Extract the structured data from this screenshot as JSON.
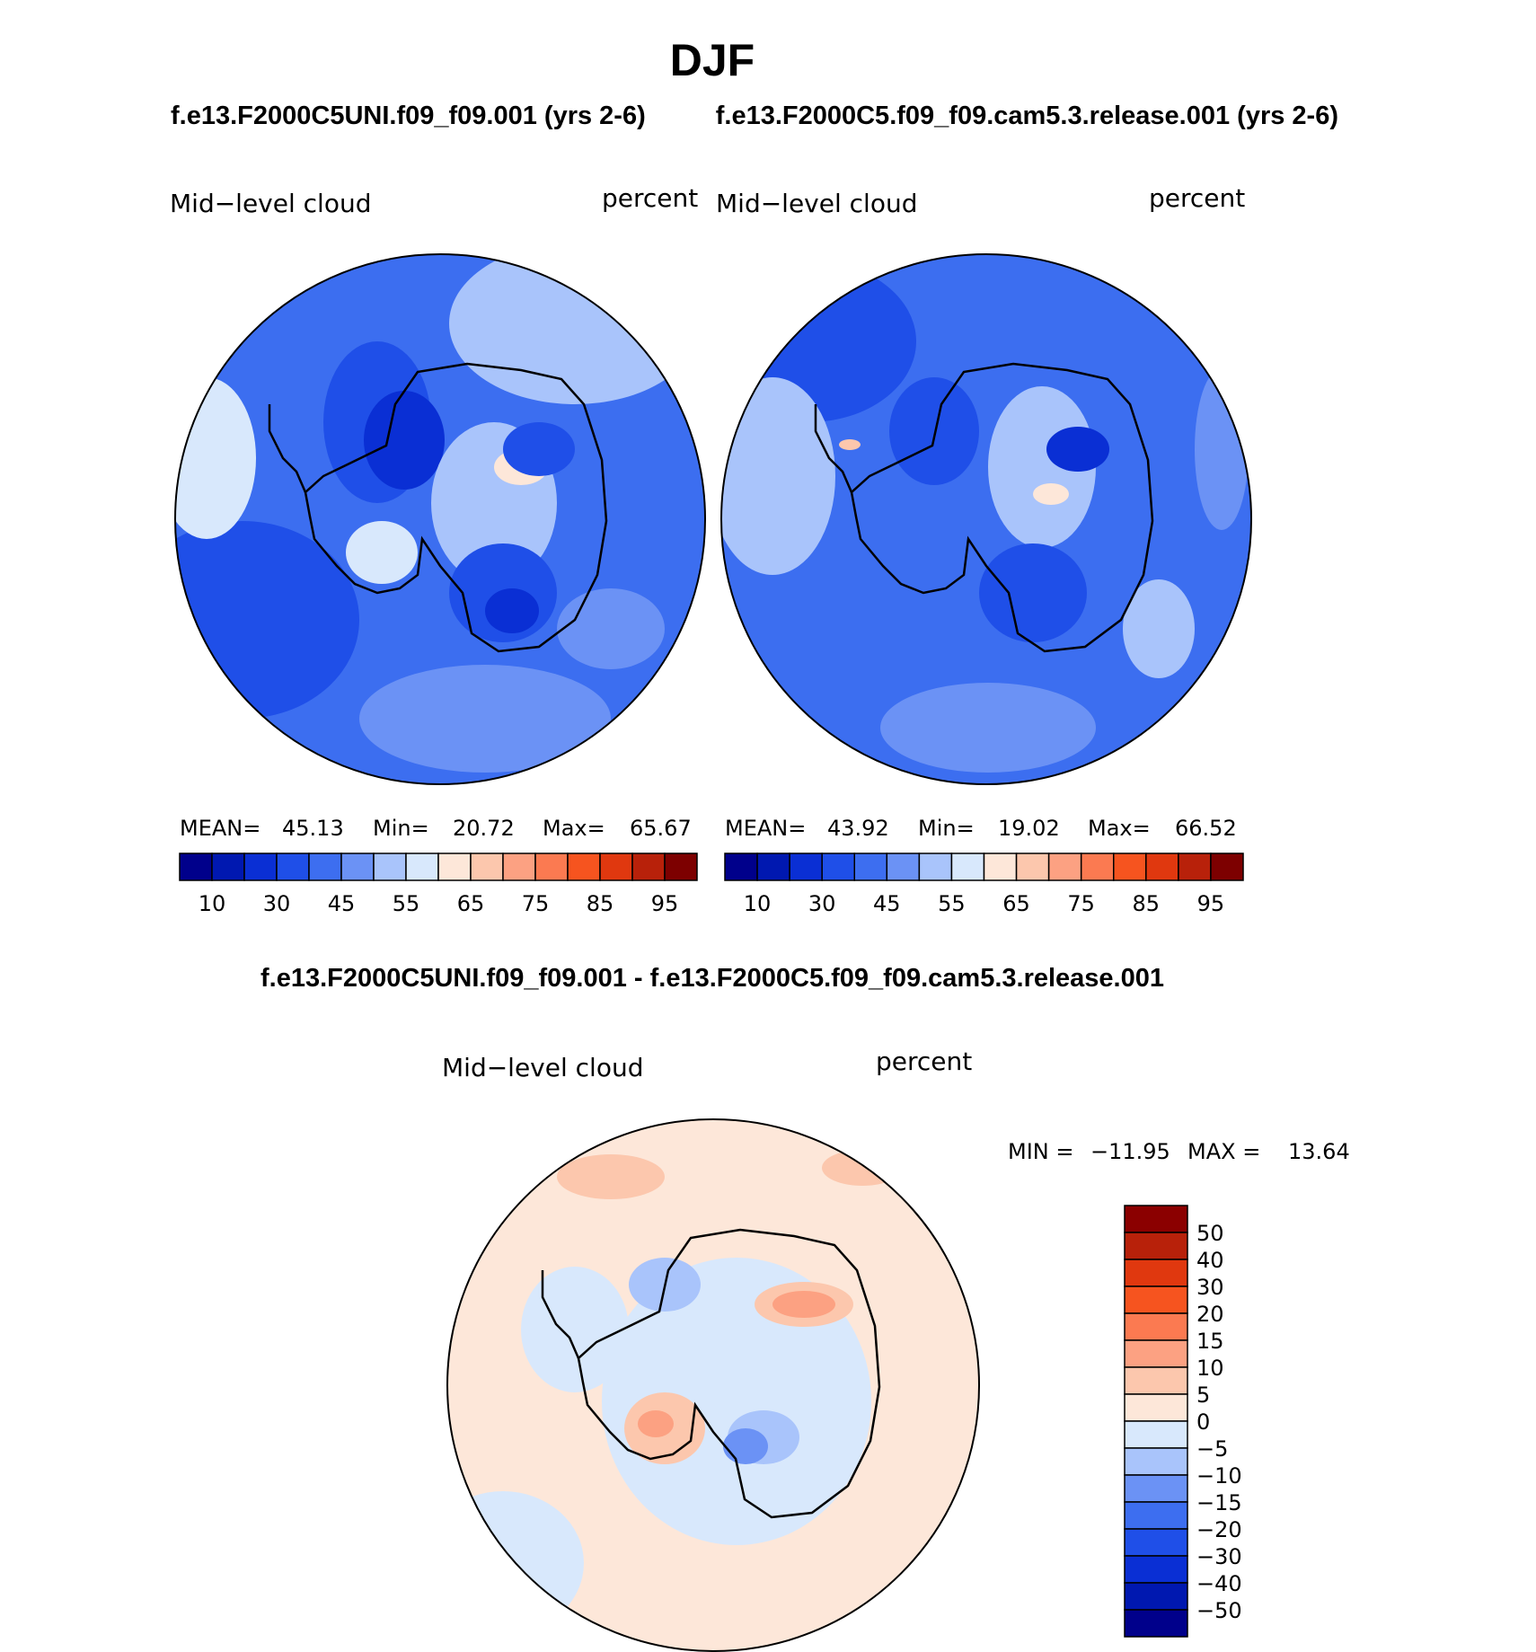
{
  "title": "DJF",
  "chart_data": [
    {
      "type": "heatmap",
      "title": "f.e13.F2000C5UNI.f09_f09.001 (yrs 2-6)",
      "variable": "Mid−level cloud",
      "units": "percent",
      "projection": "south-polar stereographic",
      "stats": {
        "mean_label": "MEAN=",
        "mean": "45.13",
        "min_label": "Min=",
        "min": "20.72",
        "max_label": "Max=",
        "max": "65.67"
      },
      "colorbar": {
        "levels": [
          10,
          20,
          30,
          40,
          45,
          50,
          55,
          60,
          65,
          70,
          75,
          80,
          85,
          90,
          95
        ],
        "tick_labels": [
          "10",
          "30",
          "45",
          "55",
          "65",
          "75",
          "85",
          "95"
        ],
        "colors": [
          "#00008b",
          "#0018b0",
          "#0a2fd4",
          "#1f4fe8",
          "#3d6ef0",
          "#6b92f5",
          "#a9c4fb",
          "#d8e8fc",
          "#fde7d9",
          "#fcc7ad",
          "#fca182",
          "#fb7a51",
          "#f6541f",
          "#e0380f",
          "#b8210a",
          "#7d0000"
        ]
      },
      "background_color": "#3c6ef0"
    },
    {
      "type": "heatmap",
      "title": "f.e13.F2000C5.f09_f09.cam5.3.release.001 (yrs 2-6)",
      "variable": "Mid−level cloud",
      "units": "percent",
      "projection": "south-polar stereographic",
      "stats": {
        "mean_label": "MEAN=",
        "mean": "43.92",
        "min_label": "Min=",
        "min": "19.02",
        "max_label": "Max=",
        "max": "66.52"
      },
      "colorbar": {
        "levels": [
          10,
          20,
          30,
          40,
          45,
          50,
          55,
          60,
          65,
          70,
          75,
          80,
          85,
          90,
          95
        ],
        "tick_labels": [
          "10",
          "30",
          "45",
          "55",
          "65",
          "75",
          "85",
          "95"
        ],
        "colors": [
          "#00008b",
          "#0018b0",
          "#0a2fd4",
          "#1f4fe8",
          "#3d6ef0",
          "#6b92f5",
          "#a9c4fb",
          "#d8e8fc",
          "#fde7d9",
          "#fcc7ad",
          "#fca182",
          "#fb7a51",
          "#f6541f",
          "#e0380f",
          "#b8210a",
          "#7d0000"
        ]
      },
      "background_color": "#3c6ef0"
    },
    {
      "type": "heatmap",
      "title": "f.e13.F2000C5UNI.f09_f09.001 - f.e13.F2000C5.f09_f09.cam5.3.release.001",
      "variable": "Mid−level cloud",
      "units": "percent",
      "projection": "south-polar stereographic",
      "stats": {
        "min_label": "MIN =",
        "min": "−11.95",
        "max_label": "MAX =",
        "max": "13.64"
      },
      "colorbar": {
        "orientation": "vertical",
        "levels": [
          50,
          40,
          30,
          20,
          15,
          10,
          5,
          0,
          -5,
          -10,
          -15,
          -20,
          -30,
          -40,
          -50
        ],
        "tick_labels": [
          "50",
          "40",
          "30",
          "20",
          "15",
          "10",
          "5",
          "0",
          "−5",
          "−10",
          "−15",
          "−20",
          "−30",
          "−40",
          "−50"
        ],
        "colors": [
          "#8b0000",
          "#b8210a",
          "#e0380f",
          "#f6541f",
          "#fb7a51",
          "#fca182",
          "#fcc7ad",
          "#fde7d9",
          "#d8e8fc",
          "#a9c4fb",
          "#6b92f5",
          "#3d6ef0",
          "#1f4fe8",
          "#0a2fd4",
          "#0018b0",
          "#00008b"
        ]
      },
      "background_color": "#fde7d9"
    }
  ]
}
